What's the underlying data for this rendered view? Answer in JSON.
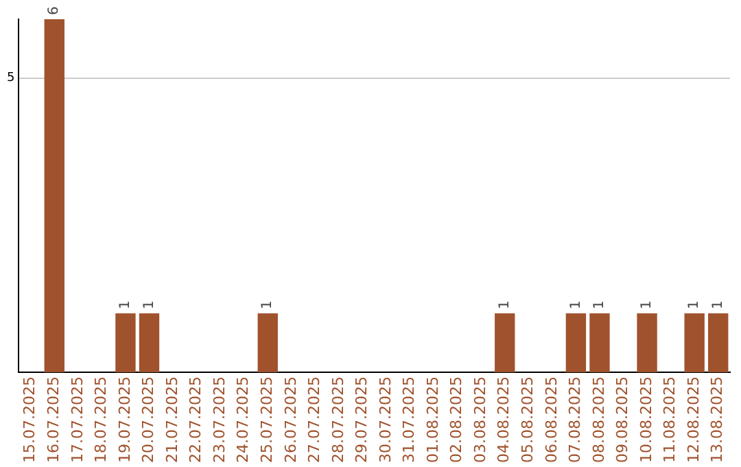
{
  "chart_data": {
    "type": "bar",
    "categories": [
      "15.07.2025",
      "16.07.2025",
      "17.07.2025",
      "18.07.2025",
      "19.07.2025",
      "20.07.2025",
      "21.07.2025",
      "22.07.2025",
      "23.07.2025",
      "24.07.2025",
      "25.07.2025",
      "26.07.2025",
      "27.07.2025",
      "28.07.2025",
      "29.07.2025",
      "30.07.2025",
      "31.07.2025",
      "01.08.2025",
      "02.08.2025",
      "03.08.2025",
      "04.08.2025",
      "05.08.2025",
      "06.08.2025",
      "07.08.2025",
      "08.08.2025",
      "09.08.2025",
      "10.08.2025",
      "11.08.2025",
      "12.08.2025",
      "13.08.2025"
    ],
    "values": [
      null,
      6,
      null,
      null,
      1,
      1,
      null,
      null,
      null,
      null,
      1,
      null,
      null,
      null,
      null,
      null,
      null,
      null,
      null,
      null,
      1,
      null,
      null,
      1,
      1,
      null,
      1,
      null,
      1,
      1
    ],
    "color": "#a0522d",
    "ylim": [
      0,
      6
    ],
    "yticks": [
      5
    ],
    "grid": "y",
    "data_labels": true,
    "legend": false
  }
}
